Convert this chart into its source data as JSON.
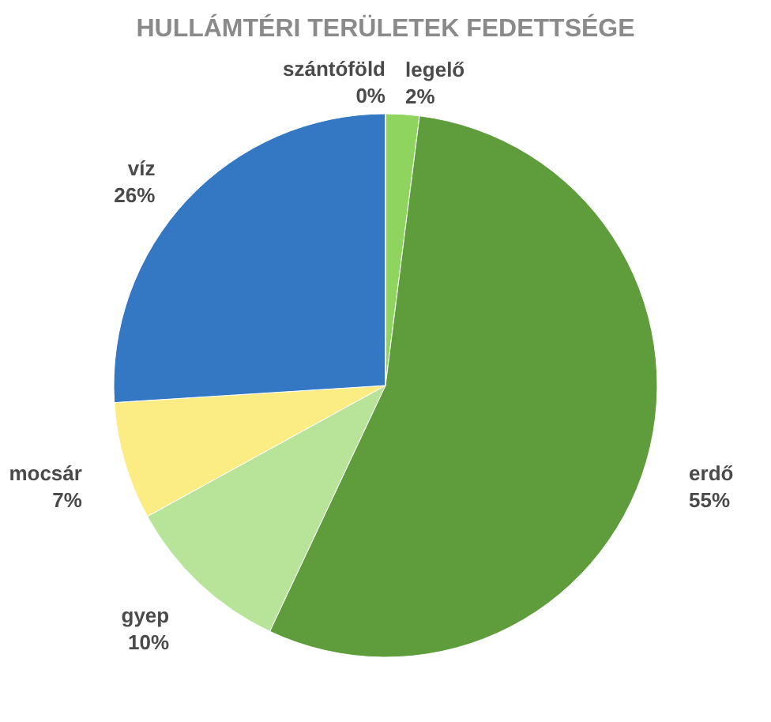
{
  "chart_data": {
    "type": "pie",
    "title": "HULLÁMTÉRI TERÜLETEK FEDETTSÉGE",
    "categories": [
      "legelő",
      "erdő",
      "gyep",
      "mocsár",
      "víz",
      "szántóföld"
    ],
    "values": [
      2,
      55,
      10,
      7,
      26,
      0
    ],
    "colors": [
      "#8fd45e",
      "#5e9c3c",
      "#b8e49a",
      "#fcec84",
      "#3477c2",
      "#e0782a"
    ],
    "value_labels": [
      "2%",
      "55%",
      "10%",
      "7%",
      "26%",
      "0%"
    ],
    "legend": false
  }
}
